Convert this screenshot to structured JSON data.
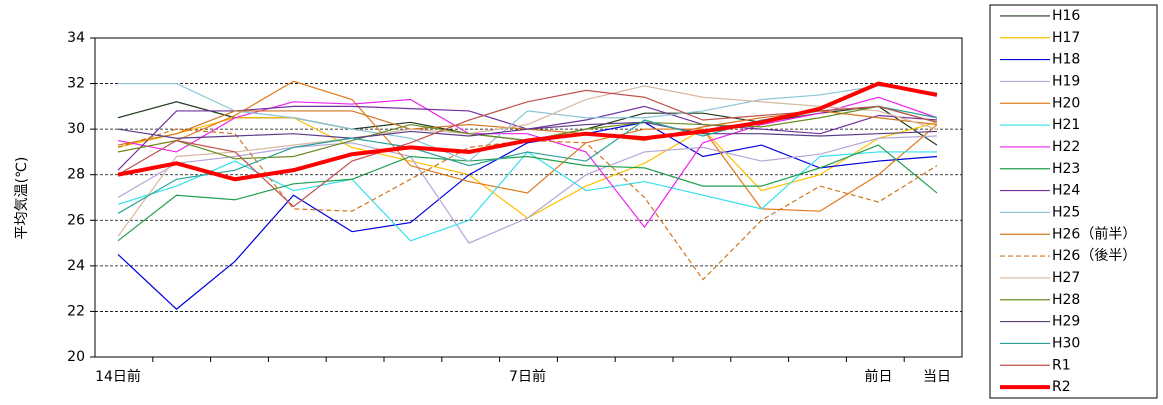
{
  "chart_data": {
    "type": "line",
    "y_label": "平均気温(℃)",
    "categories": [
      "14日前",
      null,
      null,
      null,
      null,
      null,
      null,
      "7日前",
      null,
      null,
      null,
      null,
      null,
      "前日",
      "当日"
    ],
    "ylim": [
      20,
      34
    ],
    "yticks": [
      20,
      22,
      24,
      26,
      28,
      30,
      32,
      34
    ],
    "grid": true,
    "series": [
      {
        "name": "H16",
        "color": "#1f3d1f",
        "values": [
          30.5,
          31.2,
          30.5,
          30.5,
          30.0,
          30.3,
          29.8,
          29.5,
          30.0,
          30.7,
          30.7,
          30.3,
          30.7,
          31.0,
          29.3
        ]
      },
      {
        "name": "H17",
        "color": "#ffc000",
        "values": [
          29.2,
          29.8,
          30.5,
          30.5,
          29.2,
          28.6,
          28.0,
          26.1,
          27.5,
          28.5,
          30.0,
          27.3,
          28.0,
          29.6,
          30.3
        ]
      },
      {
        "name": "H18",
        "color": "#0000dd",
        "values": [
          24.5,
          22.1,
          24.2,
          27.1,
          25.5,
          25.9,
          28.0,
          29.4,
          29.8,
          30.3,
          28.8,
          29.3,
          28.3,
          28.6,
          28.8
        ]
      },
      {
        "name": "H19",
        "color": "#b4a7d6",
        "values": [
          27.0,
          28.5,
          28.8,
          29.2,
          29.4,
          28.8,
          25.0,
          26.1,
          28.0,
          29.0,
          29.2,
          28.6,
          28.9,
          29.6,
          29.7
        ]
      },
      {
        "name": "H20",
        "color": "#e07b20",
        "values": [
          29.0,
          29.5,
          30.6,
          32.1,
          31.3,
          28.4,
          27.7,
          27.2,
          29.4,
          30.0,
          30.0,
          26.5,
          26.4,
          28.0,
          30.2
        ]
      },
      {
        "name": "H21",
        "color": "#33e0ee",
        "values": [
          26.7,
          27.5,
          28.6,
          27.3,
          27.8,
          25.1,
          26.0,
          29.0,
          27.3,
          27.7,
          27.1,
          26.5,
          28.8,
          29.0,
          29.0
        ]
      },
      {
        "name": "H22",
        "color": "#ee22ee",
        "values": [
          29.5,
          29.0,
          30.5,
          31.2,
          31.1,
          31.3,
          29.8,
          29.8,
          29.0,
          25.7,
          29.4,
          30.2,
          30.7,
          31.4,
          30.5
        ]
      },
      {
        "name": "H23",
        "color": "#22a050",
        "values": [
          25.1,
          27.1,
          26.9,
          27.6,
          27.8,
          28.8,
          28.6,
          28.8,
          28.4,
          28.3,
          27.5,
          27.5,
          28.3,
          29.3,
          27.2
        ]
      },
      {
        "name": "H24",
        "color": "#7030a0",
        "values": [
          28.2,
          30.8,
          30.8,
          31.0,
          31.0,
          30.9,
          30.8,
          30.0,
          30.4,
          31.0,
          30.2,
          30.0,
          29.8,
          30.6,
          30.4
        ]
      },
      {
        "name": "H25",
        "color": "#8ec5d6",
        "values": [
          32.0,
          32.0,
          30.8,
          30.5,
          30.0,
          29.6,
          28.6,
          30.8,
          30.5,
          30.5,
          30.8,
          31.3,
          31.5,
          31.9,
          31.6
        ]
      },
      {
        "name": "H26（前半）",
        "color": "#d2761e",
        "values": [
          29.3,
          29.8,
          30.8,
          30.8,
          30.8,
          30.0,
          30.2,
          30.0,
          29.8,
          29.5,
          30.1,
          30.5,
          30.8,
          30.5,
          30.2
        ]
      },
      {
        "name": "H26（後半）",
        "color": "#d2761e",
        "dashed": true,
        "values": [
          29.2,
          30.0,
          29.8,
          26.5,
          26.4,
          27.8,
          29.2,
          29.5,
          29.4,
          27.0,
          23.4,
          26.0,
          27.5,
          26.8,
          28.4
        ]
      },
      {
        "name": "H27",
        "color": "#d9b8a0",
        "values": [
          25.3,
          28.8,
          29.0,
          29.3,
          29.6,
          30.0,
          29.8,
          30.2,
          31.3,
          31.9,
          31.4,
          31.2,
          31.0,
          30.8,
          30.0
        ]
      },
      {
        "name": "H28",
        "color": "#6b8e23",
        "values": [
          29.0,
          29.5,
          28.7,
          28.8,
          29.5,
          30.2,
          29.8,
          29.5,
          30.0,
          30.3,
          30.2,
          30.1,
          30.5,
          31.0,
          30.3
        ]
      },
      {
        "name": "H29",
        "color": "#5b3c88",
        "values": [
          30.0,
          29.6,
          29.7,
          29.8,
          29.6,
          29.9,
          29.7,
          30.0,
          30.2,
          30.3,
          29.8,
          29.8,
          29.7,
          29.8,
          29.9
        ]
      },
      {
        "name": "H30",
        "color": "#2aa198",
        "values": [
          26.3,
          27.8,
          28.2,
          29.2,
          29.6,
          29.2,
          28.4,
          29.0,
          28.6,
          30.4,
          29.7,
          30.4,
          30.8,
          31.0,
          30.5
        ]
      },
      {
        "name": "R1",
        "color": "#c0504d",
        "values": [
          28.0,
          29.5,
          29.0,
          26.6,
          28.6,
          29.4,
          30.4,
          31.2,
          31.7,
          31.4,
          30.4,
          30.6,
          30.8,
          31.0,
          30.3
        ]
      },
      {
        "name": "R2",
        "color": "#ff0000",
        "bold": true,
        "values": [
          28.0,
          28.5,
          27.8,
          28.2,
          28.9,
          29.2,
          29.0,
          29.5,
          29.8,
          29.6,
          29.9,
          30.3,
          30.9,
          32.0,
          31.5
        ]
      }
    ]
  }
}
